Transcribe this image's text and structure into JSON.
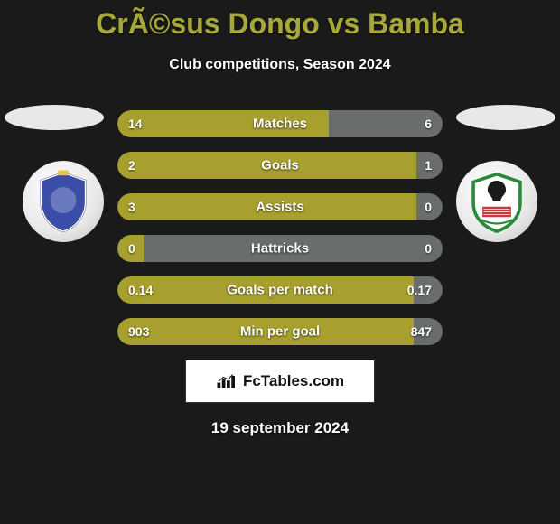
{
  "title": "CrÃ©sus Dongo vs Bamba",
  "subtitle": "Club competitions, Season 2024",
  "date": "19 september 2024",
  "footer_text": "FcTables.com",
  "colors": {
    "background": "#1a1a1a",
    "title_color": "#a8a83a",
    "bar_left": "#a8a02e",
    "bar_right": "#6a6e6a",
    "ellipse": "#e8e8e8"
  },
  "bar_style": {
    "height": 30,
    "radius": 15,
    "gap": 16,
    "container_width": 360,
    "font_size_label": 15,
    "font_size_value": 14
  },
  "rows": [
    {
      "label": "Matches",
      "left": "14",
      "right": "6",
      "left_pct": 65,
      "right_pct": 35
    },
    {
      "label": "Goals",
      "left": "2",
      "right": "1",
      "left_pct": 92,
      "right_pct": 8
    },
    {
      "label": "Assists",
      "left": "3",
      "right": "0",
      "left_pct": 92,
      "right_pct": 8
    },
    {
      "label": "Hattricks",
      "left": "0",
      "right": "0",
      "left_pct": 8,
      "right_pct": 92
    },
    {
      "label": "Goals per match",
      "left": "0.14",
      "right": "0.17",
      "left_pct": 91,
      "right_pct": 9
    },
    {
      "label": "Min per goal",
      "left": "903",
      "right": "847",
      "left_pct": 91,
      "right_pct": 9
    }
  ],
  "logos": {
    "left_name": "club-shield-blue",
    "right_name": "club-shield-green"
  }
}
